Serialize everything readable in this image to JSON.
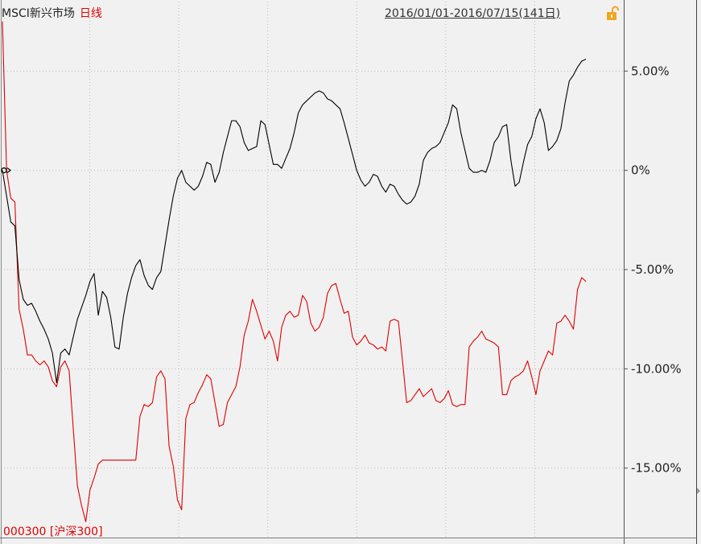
{
  "header": {
    "index_name": "MSCI新兴市场",
    "period_mode": "日线",
    "date_range": "2016/01/01-2016/07/15(141日)",
    "lock_icon": "unlock-icon"
  },
  "footer": {
    "benchmark_label": "000300 [沪深300]"
  },
  "colors": {
    "background": "#f1f1f1",
    "grid": "#b9b9b9",
    "msci_line": "#000000",
    "hs300_line": "#e00000",
    "lock": "#f2a61b"
  },
  "chart_data": {
    "type": "line",
    "y_unit": "%",
    "ylim": [
      -18.5,
      8.5
    ],
    "yticks": [
      5,
      0,
      -5,
      -10,
      -15
    ],
    "ytick_labels": [
      "5.00%",
      "0%",
      "-5.00%",
      "-10.00%",
      "-15.00%"
    ],
    "x_points": 141,
    "grid": true,
    "series": [
      {
        "name": "MSCI新兴市场",
        "color": "#000000",
        "values": [
          0,
          -1.3,
          -2.6,
          -2.8,
          -5.5,
          -6.5,
          -6.8,
          -6.7,
          -7.1,
          -7.6,
          -8.0,
          -8.5,
          -9.2,
          -10.7,
          -9.2,
          -9.0,
          -9.3,
          -8.4,
          -7.5,
          -6.9,
          -6.3,
          -5.6,
          -5.2,
          -7.3,
          -6.1,
          -6.4,
          -7.4,
          -8.9,
          -9.0,
          -7.4,
          -6.2,
          -5.4,
          -4.8,
          -4.5,
          -5.3,
          -5.8,
          -6.0,
          -5.4,
          -5.1,
          -3.8,
          -2.5,
          -1.3,
          -0.4,
          0,
          -0.6,
          -0.8,
          -1.0,
          -0.8,
          -0.3,
          0.4,
          0.3,
          -0.6,
          -0.1,
          0.9,
          1.7,
          2.5,
          2.5,
          2.2,
          1.4,
          1.0,
          1.1,
          1.2,
          2.5,
          2.3,
          1.3,
          0.3,
          0.3,
          0.1,
          0.6,
          1.1,
          1.9,
          2.9,
          3.3,
          3.5,
          3.7,
          3.9,
          4.0,
          3.9,
          3.6,
          3.5,
          3.3,
          3.1,
          2.4,
          1.6,
          0.8,
          0.0,
          -0.5,
          -0.8,
          -0.6,
          -0.2,
          -0.3,
          -0.8,
          -1.1,
          -0.7,
          -0.8,
          -1.2,
          -1.5,
          -1.7,
          -1.6,
          -1.3,
          -0.7,
          0.5,
          0.9,
          1.1,
          1.2,
          1.4,
          1.9,
          2.4,
          3.3,
          3.1,
          1.9,
          1.0,
          0.1,
          -0.1,
          -0.1,
          0.0,
          -0.1,
          0.5,
          1.4,
          1.7,
          2.2,
          2.3,
          0.5,
          -0.8,
          -0.6,
          0.4,
          1.3,
          1.7,
          2.6,
          3.1,
          2.4,
          1.0,
          1.2,
          1.5,
          2.1,
          3.4,
          4.5,
          4.8,
          5.2,
          5.5,
          5.6
        ]
      },
      {
        "name": "沪深300",
        "color": "#e00000",
        "values": [
          7.5,
          0,
          -1.4,
          -1.6,
          -7.0,
          -8.0,
          -9.3,
          -9.3,
          -9.6,
          -9.8,
          -9.6,
          -9.9,
          -10.6,
          -10.9,
          -9.9,
          -9.6,
          -10.1,
          -13.0,
          -15.9,
          -16.9,
          -17.7,
          -16.1,
          -15.5,
          -14.8,
          -14.6,
          -14.6,
          -14.6,
          -14.6,
          -14.6,
          -14.6,
          -14.6,
          -14.6,
          -14.6,
          -12.4,
          -11.8,
          -11.9,
          -11.7,
          -10.4,
          -10.1,
          -10.5,
          -13.9,
          -14.9,
          -16.6,
          -17.1,
          -12.5,
          -11.8,
          -11.7,
          -11.2,
          -10.8,
          -10.3,
          -10.5,
          -11.7,
          -12.9,
          -12.8,
          -11.7,
          -11.3,
          -10.9,
          -9.9,
          -8.3,
          -7.6,
          -6.5,
          -7.1,
          -7.8,
          -8.5,
          -8.1,
          -8.6,
          -9.6,
          -7.9,
          -7.3,
          -7.1,
          -7.4,
          -7.3,
          -6.3,
          -6.6,
          -7.7,
          -8.1,
          -7.9,
          -7.4,
          -6.2,
          -5.8,
          -5.7,
          -6.5,
          -7.2,
          -7.1,
          -8.4,
          -8.8,
          -8.6,
          -8.3,
          -8.7,
          -8.8,
          -9.0,
          -8.9,
          -9.1,
          -7.6,
          -7.5,
          -7.6,
          -9.6,
          -11.7,
          -11.6,
          -11.3,
          -11.0,
          -11.4,
          -11.2,
          -11.0,
          -11.6,
          -11.7,
          -11.5,
          -11.1,
          -11.8,
          -11.9,
          -11.8,
          -11.8,
          -8.9,
          -8.6,
          -8.4,
          -8.1,
          -8.5,
          -8.6,
          -8.7,
          -8.9,
          -11.3,
          -11.3,
          -10.6,
          -10.4,
          -10.3,
          -10.1,
          -9.6,
          -10.4,
          -11.3,
          -10.1,
          -9.6,
          -9.1,
          -9.3,
          -7.7,
          -7.6,
          -7.3,
          -7.6,
          -8.0,
          -6.0,
          -5.4,
          -5.6
        ]
      }
    ]
  }
}
